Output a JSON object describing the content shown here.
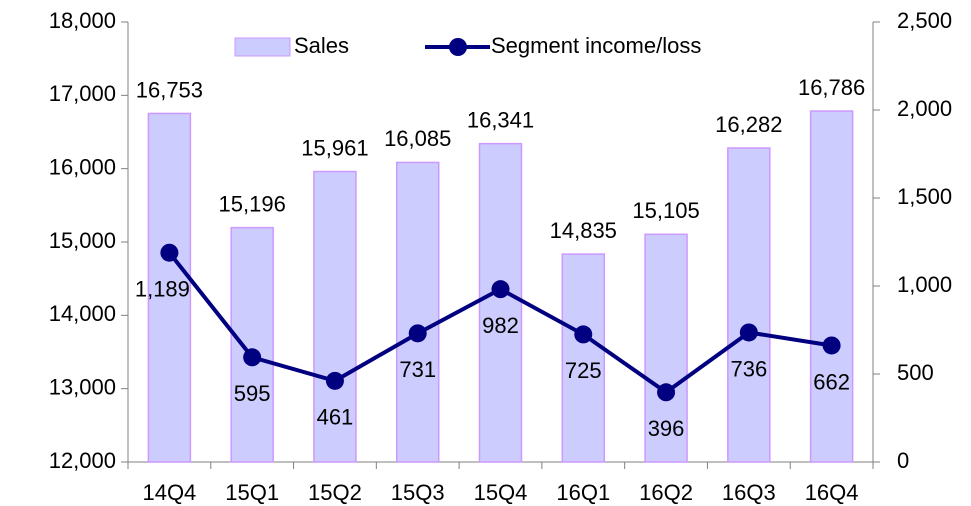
{
  "chart_data": {
    "type": "bar-line",
    "categories": [
      "14Q4",
      "15Q1",
      "15Q2",
      "15Q3",
      "15Q4",
      "16Q1",
      "16Q2",
      "16Q3",
      "16Q4"
    ],
    "series": [
      {
        "name": "Sales",
        "type": "bar",
        "color": "#ccccff",
        "values": [
          16753,
          15196,
          15961,
          16085,
          16341,
          14835,
          15105,
          16282,
          16786
        ],
        "value_labels": [
          "16,753",
          "15,196",
          "15,961",
          "16,085",
          "16,341",
          "14,835",
          "15,105",
          "16,282",
          "16,786"
        ]
      },
      {
        "name": "Segment income/loss",
        "type": "line",
        "axis": "y2",
        "color": "#000080",
        "values": [
          1189,
          595,
          461,
          731,
          982,
          725,
          396,
          736,
          662
        ],
        "value_labels": [
          "1,189",
          "595",
          "461",
          "731",
          "982",
          "725",
          "396",
          "736",
          "662"
        ]
      }
    ],
    "ylim": [
      12000,
      18000
    ],
    "yticks": [
      {
        "value": 12000,
        "label": "12,000"
      },
      {
        "value": 13000,
        "label": "13,000"
      },
      {
        "value": 14000,
        "label": "14,000"
      },
      {
        "value": 15000,
        "label": "15,000"
      },
      {
        "value": 16000,
        "label": "16,000"
      },
      {
        "value": 17000,
        "label": "17,000"
      },
      {
        "value": 18000,
        "label": "18,000"
      }
    ],
    "y2lim": [
      0,
      2500
    ],
    "y2ticks": [
      0,
      500,
      {
        "value": 1000,
        "label": "1,000"
      },
      {
        "value": 1500,
        "label": "1,500"
      },
      {
        "value": 2000,
        "label": "2,000"
      },
      {
        "value": 2500,
        "label": "2,500"
      }
    ],
    "legend": "top"
  }
}
